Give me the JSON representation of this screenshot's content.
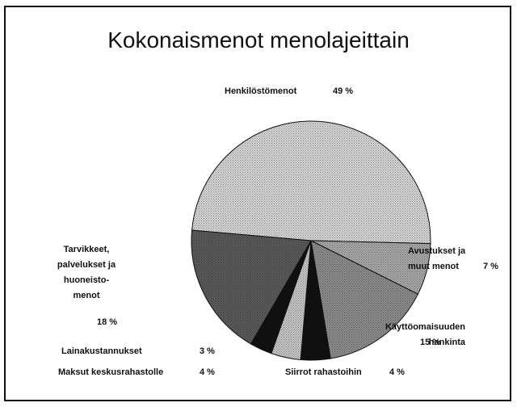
{
  "chart_data": {
    "type": "pie",
    "title": "Kokonaismenot menolajeittain",
    "categories": [
      "Henkilöstömenot",
      "Avustukset ja\nmuut menot",
      "Käyttöomaisuuden\nhankinta",
      "Siirrot rahastoihin",
      "Maksut keskusrahastolle",
      "Lainakustannukset",
      "Tarvikkeet,\npalvelukset ja\nhuoneisto-\nmenot"
    ],
    "values": [
      49,
      7,
      15,
      4,
      4,
      3,
      18
    ],
    "value_labels": [
      "49 %",
      "7 %",
      "15 %",
      "4 %",
      "4 %",
      "3 %",
      "18 %"
    ],
    "colors": [
      "#d4d4d4",
      "#a8a8a8",
      "#8c8c8c",
      "#111111",
      "#c4c4c4",
      "#111111",
      "#5a5a5a"
    ]
  }
}
